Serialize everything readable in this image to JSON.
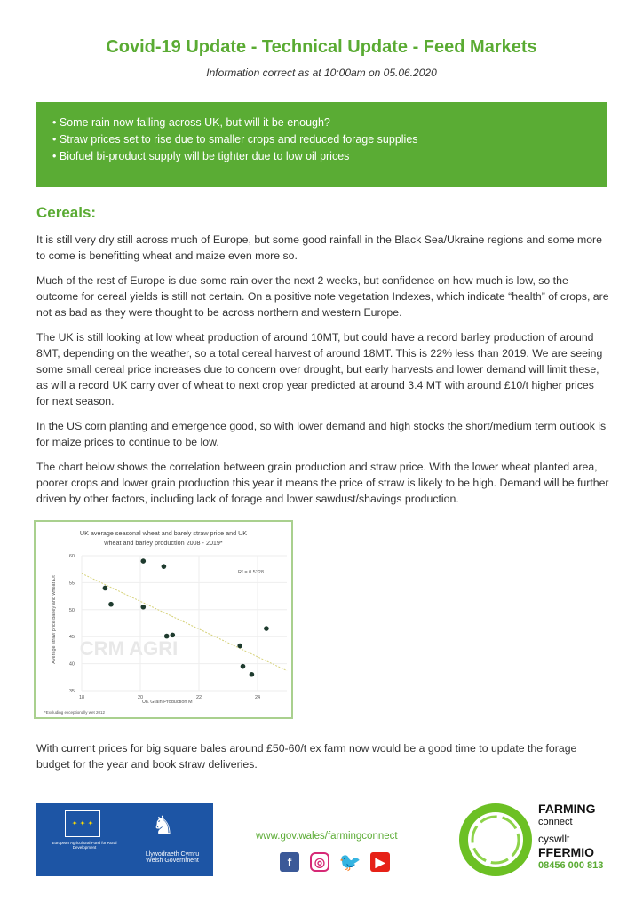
{
  "header": {
    "title": "Covid-19 Update - Technical Update - Feed Markets",
    "subtitle": "Information correct as at 10:00am on 05.06.2020"
  },
  "highlights": [
    "Some rain now falling across UK, but will it be enough?",
    "Straw prices set to rise due to smaller crops and reduced forage supplies",
    "Biofuel bi-product supply will be tighter due to low oil prices"
  ],
  "section": {
    "heading": "Cereals:",
    "paragraphs": [
      "It is still very dry still across much of Europe, but some good rainfall in the Black Sea/Ukraine regions and some more to come is benefitting wheat and maize even more so.",
      "Much of the rest of Europe is due some rain over the next 2 weeks, but confidence on how much is low, so the outcome for cereal yields is still not certain. On a positive note vegetation Indexes, which indicate “health” of crops, are not as bad as they were thought to be across northern and western Europe.",
      "The UK is still looking at low wheat production of around 10MT, but could have a record barley production of around 8MT, depending on the weather, so a total cereal harvest of around 18MT. This is 22% less than 2019. We are seeing some small cereal price increases due to concern over drought, but early harvests and lower demand will limit these, as will a record UK carry over of wheat to next crop year predicted at around 3.4 MT with around £10/t higher prices for next season.",
      "In the US corn planting and emergence good, so with lower demand and high stocks the short/medium term outlook is for maize prices to continue to be low.",
      "The chart below shows the correlation between grain production and straw price. With the lower wheat planted area, poorer crops and lower grain production this year it means the price of straw is likely to be high. Demand will be further driven by other factors, including lack of forage and lower sawdust/shavings production."
    ],
    "closing": "With current prices for big square bales around £50-60/t ex farm now would be a good time to update the forage budget for the year and book straw deliveries."
  },
  "chart_data": {
    "type": "scatter",
    "title": "UK average seasonal wheat and barely straw price and UK wheat and barley production 2008 - 2019*",
    "xlabel": "UK Grain Production MT",
    "ylabel": "Average straw price barley and wheat £/t",
    "xlim": [
      18,
      25
    ],
    "ylim": [
      35,
      60
    ],
    "xticks": [
      "18",
      "20",
      "22",
      "24"
    ],
    "yticks": [
      "35",
      "40",
      "45",
      "50",
      "55",
      "60"
    ],
    "annotation": "R² = 0.5328",
    "footnote": "*Excluding exceptionally wet 2012",
    "watermark": "CRM AGRI",
    "points": [
      [
        18.8,
        54
      ],
      [
        19,
        51
      ],
      [
        20.1,
        59
      ],
      [
        20.1,
        50.5
      ],
      [
        20.8,
        58
      ],
      [
        20.9,
        45.1
      ],
      [
        21.1,
        45.3
      ],
      [
        23.4,
        43.3
      ],
      [
        23.5,
        39.5
      ],
      [
        23.8,
        38
      ],
      [
        24.3,
        46.5
      ]
    ],
    "trendline": [
      [
        18,
        56.7
      ],
      [
        25,
        38.7
      ]
    ],
    "colors": {
      "points": "#1e3b2e",
      "trendline": "#d6d27a"
    }
  },
  "footer": {
    "url": "www.gov.wales/farmingconnect",
    "eu_text": "European Agricultural Fund for Rural Development",
    "wg_text": "Llywodraeth Cymru Welsh Government",
    "brand_lines": [
      "FARMING",
      "connect",
      "cyswllt",
      "FFERMIO"
    ],
    "phone": "08456 000 813",
    "social": [
      "facebook-icon",
      "instagram-icon",
      "twitter-icon",
      "youtube-icon"
    ]
  },
  "colors": {
    "accent": "#5aab33",
    "eu_blue": "#1d55a5"
  }
}
